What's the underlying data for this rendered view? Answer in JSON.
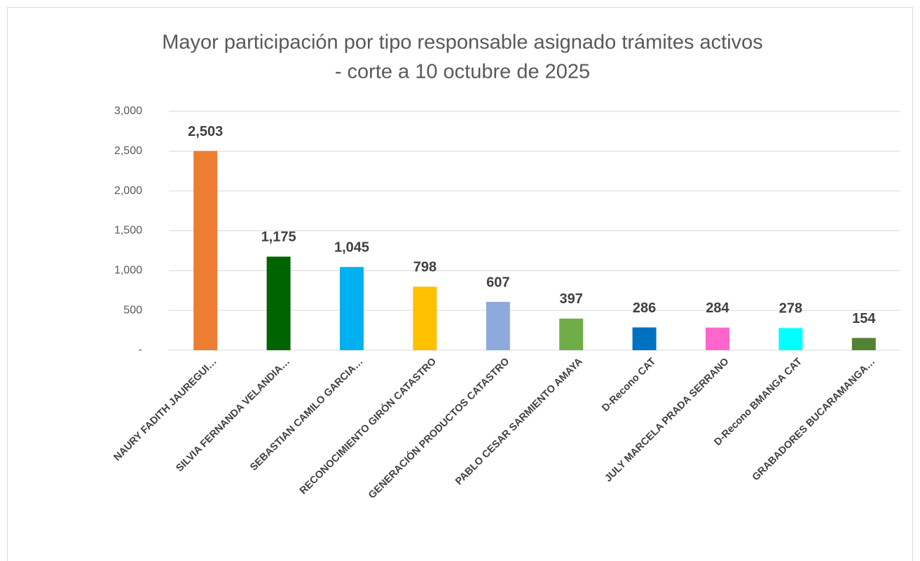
{
  "chart_data": {
    "type": "bar",
    "title": [
      "Mayor participación por tipo responsable asignado trámites activos",
      "- corte a 10 octubre de 2025"
    ],
    "categories": [
      "NAURY FADITH JAUREGUI…",
      "SILVIA FERNANDA VELANDIA…",
      "SEBASTIAN CAMILO GARCIA…",
      "RECONOCIMIENTO GIRÓN CATASTRO",
      "GENERACIÓN PRODUCTOS CATASTRO",
      "PABLO CESAR SARMIENTO AMAYA",
      "D-Recono CAT",
      "JULY MARCELA PRADA SERRANO",
      "D-Recono BMANGA CAT",
      "GRABADORES BUCARAMANGA…"
    ],
    "values": [
      2503,
      1175,
      1045,
      798,
      607,
      397,
      286,
      284,
      278,
      154
    ],
    "value_labels": [
      "2,503",
      "1,175",
      "1,045",
      "798",
      "607",
      "397",
      "286",
      "284",
      "278",
      "154"
    ],
    "colors": [
      "#ED7D31",
      "#006400",
      "#00B0F0",
      "#FFC000",
      "#8EA9DB",
      "#70AD47",
      "#0070C0",
      "#FF66CC",
      "#00FFFF",
      "#548235"
    ],
    "ylim": [
      0,
      3000
    ],
    "yticks": [
      {
        "value": 0,
        "label": "-"
      },
      500,
      {
        "value": 1000,
        "label": "1,000"
      },
      {
        "value": 1500,
        "label": "1,500"
      },
      {
        "value": 2000,
        "label": "2,000"
      },
      {
        "value": 2500,
        "label": "2,500"
      },
      {
        "value": 3000,
        "label": "3,000"
      }
    ],
    "grid": true
  }
}
